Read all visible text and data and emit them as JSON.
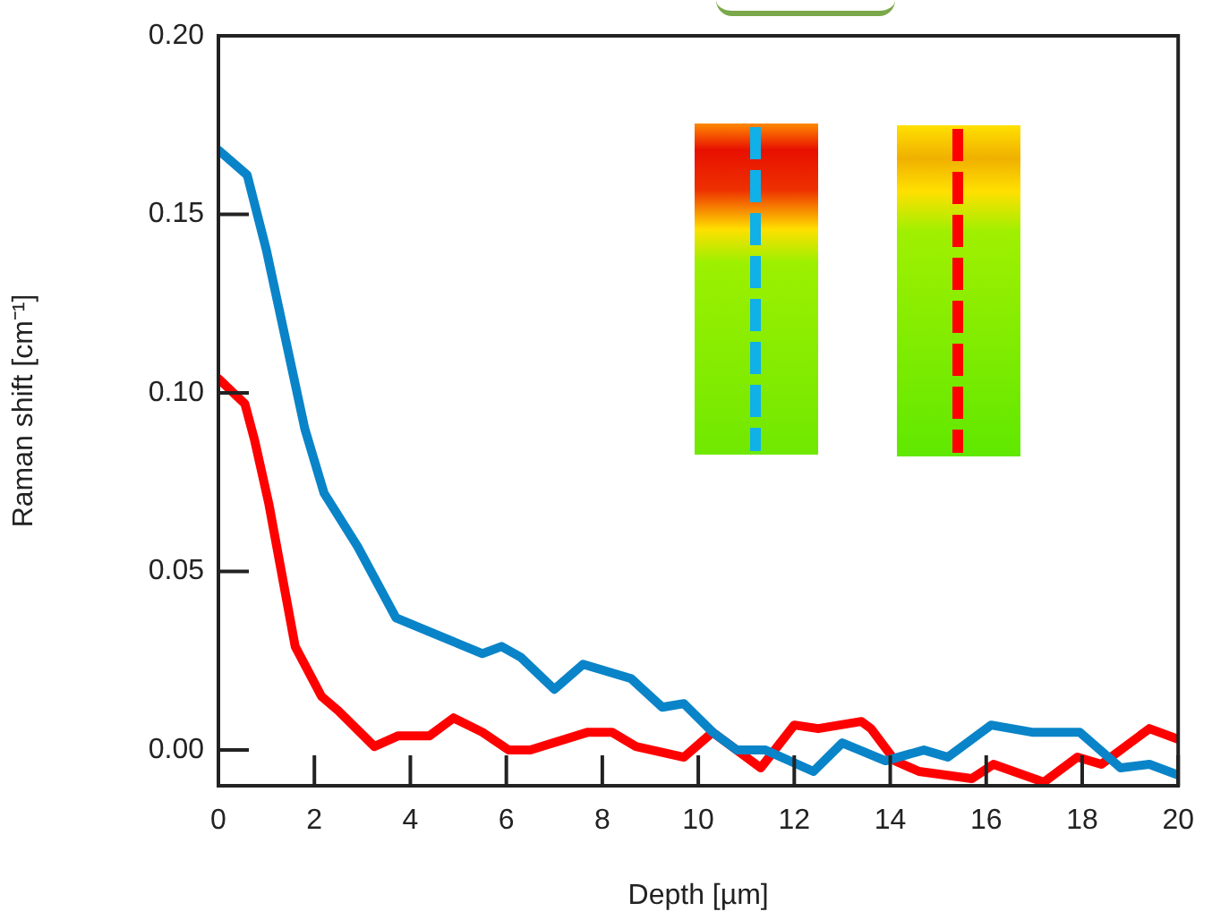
{
  "chart_data": {
    "type": "line",
    "xlabel": "Depth [µm]",
    "ylabel": "Raman shift [cm⁻¹]",
    "xlim": [
      0,
      20
    ],
    "xticks": [
      0,
      2,
      4,
      6,
      8,
      10,
      12,
      14,
      16,
      18,
      20
    ],
    "ylim": [
      -0.01,
      0.2
    ],
    "yticks": [
      {
        "value": 0,
        "label": "0.00"
      },
      {
        "value": 0.05,
        "label": "0.05"
      },
      {
        "value": 0.1,
        "label": "0.10"
      },
      {
        "value": 0.15,
        "label": "0.15"
      },
      {
        "value": 0.2,
        "label": "0.20"
      }
    ],
    "grid": false,
    "legend": false,
    "marker": "none",
    "line_style": "solid",
    "series": [
      {
        "color": "#0a84c8",
        "x": [
          0,
          0.6,
          1.0,
          1.4,
          1.8,
          2.2,
          2.9,
          3.7,
          4.6,
          5.5,
          5.9,
          6.3,
          7.0,
          7.6,
          8.6,
          9.25,
          9.7,
          10.3,
          10.8,
          11.4,
          12.4,
          13.0,
          13.9,
          14.7,
          15.2,
          16.1,
          16.95,
          17.95,
          18.8,
          19.4,
          20
        ],
        "values": [
          0.168,
          0.161,
          0.14,
          0.115,
          0.09,
          0.072,
          0.057,
          0.037,
          0.032,
          0.027,
          0.029,
          0.026,
          0.017,
          0.024,
          0.02,
          0.012,
          0.013,
          0.005,
          0,
          0,
          -0.006,
          0.002,
          -0.003,
          0,
          -0.002,
          0.007,
          0.005,
          0.005,
          -0.005,
          -0.004,
          -0.007
        ]
      },
      {
        "color": "#ff0000",
        "x": [
          0,
          0.55,
          0.75,
          1.05,
          1.6,
          2.15,
          2.5,
          3.25,
          3.75,
          4.4,
          4.9,
          5.5,
          6.05,
          6.5,
          7.7,
          8.2,
          8.7,
          9.7,
          10.3,
          11.3,
          12.0,
          12.5,
          13.4,
          13.6,
          14.1,
          14.6,
          15.7,
          16.15,
          17.2,
          17.9,
          18.4,
          19.4,
          20
        ],
        "values": [
          0.104,
          0.097,
          0.087,
          0.069,
          0.029,
          0.015,
          0.011,
          0.001,
          0.004,
          0.004,
          0.009,
          0.005,
          0,
          0,
          0.005,
          0.005,
          0.001,
          -0.002,
          0.005,
          -0.005,
          0.007,
          0.006,
          0.008,
          0.006,
          -0.003,
          -0.006,
          -0.008,
          -0.004,
          -0.009,
          -0.002,
          -0.004,
          0.006,
          0.003
        ]
      }
    ]
  }
}
